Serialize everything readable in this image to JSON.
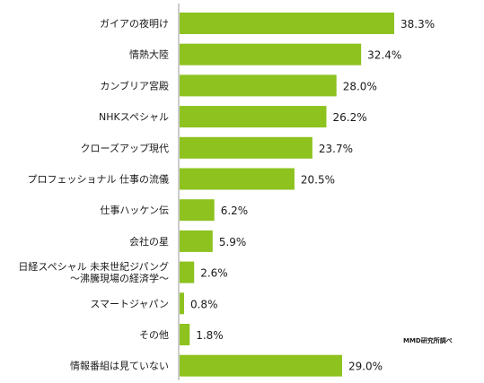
{
  "source_note": "MMD研究所調べ",
  "colors": {
    "bar": "#8dc21f",
    "axis": "#9a9a9a",
    "text": "#1a1a1a"
  },
  "chart_data": {
    "type": "bar",
    "orientation": "horizontal",
    "categories": [
      [
        "ガイアの夜明け"
      ],
      [
        "情熱大陸"
      ],
      [
        "カンブリア宮殿"
      ],
      [
        "NHKスペシャル"
      ],
      [
        "クローズアップ現代"
      ],
      [
        "プロフェッショナル 仕事の流儀"
      ],
      [
        "仕事ハッケン伝"
      ],
      [
        "会社の星"
      ],
      [
        "日経スペシャル 未来世紀ジパング",
        "〜沸騰現場の経済学〜"
      ],
      [
        "スマートジャパン"
      ],
      [
        "その他"
      ],
      [
        "情報番組は見ていない"
      ]
    ],
    "values": [
      38.3,
      32.4,
      28.0,
      26.2,
      23.7,
      20.5,
      6.2,
      5.9,
      2.6,
      0.8,
      1.8,
      29.0
    ],
    "value_labels": [
      "38.3%",
      "32.4%",
      "28.0%",
      "26.2%",
      "23.7%",
      "20.5%",
      "6.2%",
      "5.9%",
      "2.6%",
      "0.8%",
      "1.8%",
      "29.0%"
    ],
    "xlim": [
      0,
      40
    ],
    "grid": false,
    "legend": "none"
  }
}
